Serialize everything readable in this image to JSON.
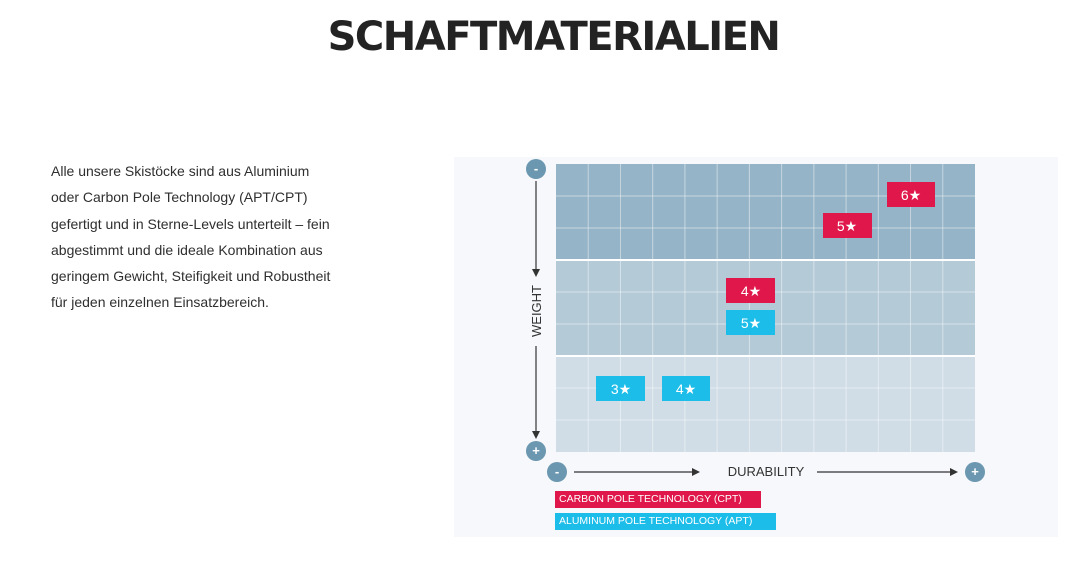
{
  "page": {
    "title": "SCHAFTMATERIALIEN",
    "intro_lines": [
      "Alle unsere Skistöcke sind aus Aluminium",
      "oder Carbon Pole Technology (APT/CPT)",
      "gefertigt und in Sterne-Levels unterteilt – fein",
      "abgestimmt und die ideale Kombination aus",
      "geringem Gewicht, Steifigkeit und Robustheit",
      "für jeden einzelnen Einsatzbereich."
    ]
  },
  "figure": {
    "y_axis": {
      "label": "WEIGHT",
      "top_symbol": "-",
      "bottom_symbol": "+"
    },
    "x_axis": {
      "label": "DURABILITY",
      "left_symbol": "-",
      "right_symbol": "+"
    },
    "badges": [
      {
        "label": "6★",
        "material": "cpt"
      },
      {
        "label": "5★",
        "material": "cpt"
      },
      {
        "label": "4★",
        "material": "cpt"
      },
      {
        "label": "5★",
        "material": "apt"
      },
      {
        "label": "3★",
        "material": "apt"
      },
      {
        "label": "4★",
        "material": "apt"
      }
    ],
    "legend": [
      {
        "label": "CARBON POLE TECHNOLOGY (CPT)",
        "material": "cpt"
      },
      {
        "label": "ALUMINUM POLE TECHNOLOGY (APT)",
        "material": "apt"
      }
    ],
    "colors": {
      "cpt": "#e0174a",
      "apt": "#1cbde9",
      "band_top": "#96b4c7",
      "band_middle": "#b5cad7",
      "band_bottom": "#d0dde6",
      "axis_circle": "#6b97b0"
    }
  }
}
